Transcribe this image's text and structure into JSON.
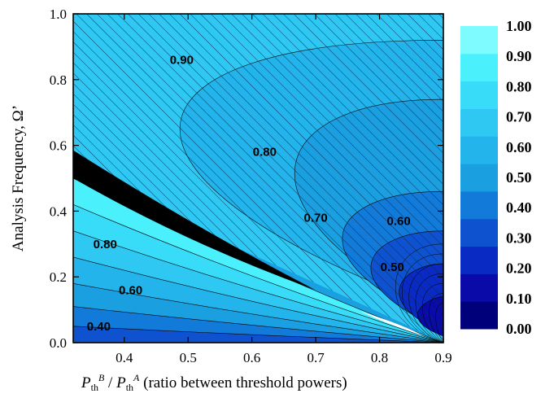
{
  "chart_data": {
    "type": "heatmap",
    "title": "",
    "xlim": [
      0.32,
      0.9
    ],
    "ylim": [
      0.0,
      1.0
    ],
    "x_ticks": [
      "0.4",
      "0.5",
      "0.6",
      "0.7",
      "0.8",
      "0.9"
    ],
    "y_ticks": [
      "0.0",
      "0.2",
      "0.4",
      "0.6",
      "0.8",
      "1.0"
    ],
    "xlabel": {
      "main": "P",
      "sub1": "th",
      "sup1": "B",
      "slash": " / ",
      "main2": "P",
      "sub2": "th",
      "sup2": "A",
      "rest": " (ratio between threshold powers)"
    },
    "ylabel": "Analysis Frequency, Ω’",
    "colorbar": {
      "labels": [
        "1.00",
        "0.90",
        "0.80",
        "0.70",
        "0.60",
        "0.50",
        "0.40",
        "0.30",
        "0.20",
        "0.10",
        "0.00"
      ],
      "colors": [
        "#00007a",
        "#0a0aa8",
        "#0a2ac4",
        "#0f52d0",
        "#127ad8",
        "#1aa0e0",
        "#22b4ea",
        "#2ec8f2",
        "#38dcf8",
        "#4af0fc",
        "#7dfbff"
      ]
    },
    "contour_labels_upper": [
      {
        "text": "0.90",
        "x": 0.49,
        "y": 0.86
      },
      {
        "text": "0.80",
        "x": 0.62,
        "y": 0.58
      },
      {
        "text": "0.70",
        "x": 0.7,
        "y": 0.38
      },
      {
        "text": "0.60",
        "x": 0.83,
        "y": 0.37
      },
      {
        "text": "0.50",
        "x": 0.82,
        "y": 0.23
      }
    ],
    "contour_labels_lower": [
      {
        "text": "0.80",
        "x": 0.37,
        "y": 0.3
      },
      {
        "text": "0.60",
        "x": 0.41,
        "y": 0.16
      },
      {
        "text": "0.40",
        "x": 0.36,
        "y": 0.05
      }
    ],
    "black_band": {
      "x0": 0.32,
      "top0": 0.585,
      "bot0": 0.5,
      "x1": 0.7,
      "y1": 0.16
    },
    "boundary": {
      "x0": 0.32,
      "y0": 0.5,
      "x1": 0.9,
      "y1": 0.0
    }
  }
}
